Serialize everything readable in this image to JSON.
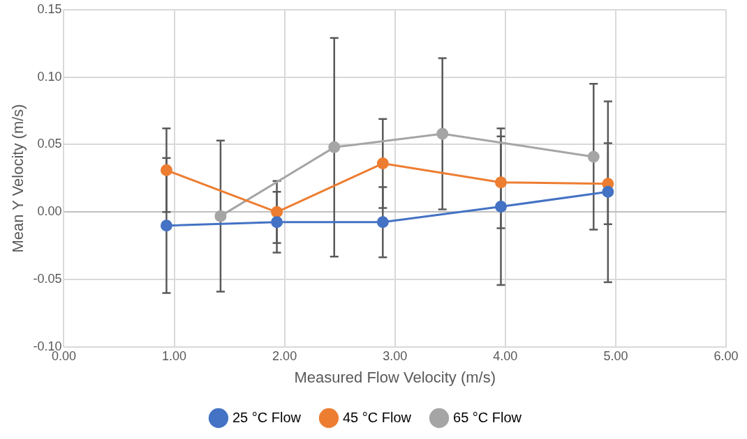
{
  "chart_data": {
    "type": "line",
    "xlabel": "Measured Flow Velocity (m/s)",
    "ylabel": "Mean Y Velocity (m/s)",
    "xlim": [
      0,
      6
    ],
    "xticks": [
      {
        "value": 0,
        "label": "0.00"
      },
      {
        "value": 1,
        "label": "1.00"
      },
      {
        "value": 2,
        "label": "2.00"
      },
      {
        "value": 3,
        "label": "3.00"
      },
      {
        "value": 4,
        "label": "4.00"
      },
      {
        "value": 5,
        "label": "5.00"
      },
      {
        "value": 6,
        "label": "6.00"
      }
    ],
    "ylim": [
      -0.1,
      0.15
    ],
    "yticks": [
      {
        "value": -0.1,
        "label": "-0.10"
      },
      {
        "value": -0.05,
        "label": "-0.05"
      },
      {
        "value": 0,
        "label": "0.00"
      },
      {
        "value": 0.05,
        "label": "0.05"
      },
      {
        "value": 0.1,
        "label": "0.10"
      },
      {
        "value": 0.15,
        "label": "0.15"
      }
    ],
    "grid": true,
    "legend": "bottom",
    "marker": "circle",
    "line_style": "solid",
    "series": [
      {
        "name": "25 °C Flow",
        "color": "#4472c4",
        "x": [
          0.93,
          1.93,
          2.89,
          3.96,
          4.93
        ],
        "values": [
          -0.01,
          -0.0075,
          -0.0075,
          0.004,
          0.015
        ],
        "errors": [
          0.05,
          0.0225,
          0.026,
          0.058,
          0.067
        ]
      },
      {
        "name": "45 °C Flow",
        "color": "#ed7d31",
        "x": [
          0.93,
          1.93,
          2.89,
          3.96,
          4.93
        ],
        "values": [
          0.031,
          0.0,
          0.036,
          0.022,
          0.021
        ],
        "errors": [
          0.031,
          0.023,
          0.033,
          0.034,
          0.03
        ]
      },
      {
        "name": "65 °C Flow",
        "color": "#a5a5a5",
        "x": [
          1.42,
          2.45,
          3.43,
          4.8
        ],
        "values": [
          -0.003,
          0.048,
          0.058,
          0.041
        ],
        "errors": [
          0.056,
          0.081,
          0.056,
          0.054
        ]
      }
    ]
  }
}
